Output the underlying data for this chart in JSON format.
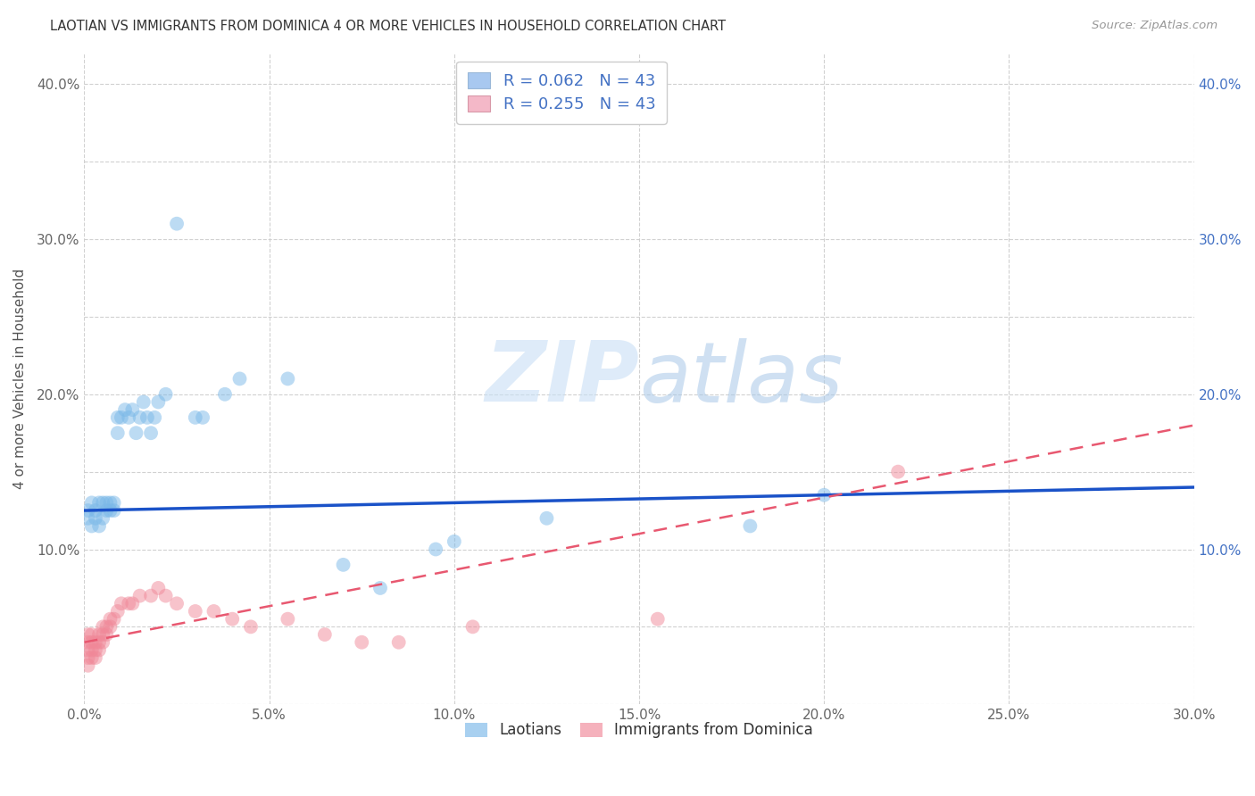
{
  "title": "LAOTIAN VS IMMIGRANTS FROM DOMINICA 4 OR MORE VEHICLES IN HOUSEHOLD CORRELATION CHART",
  "source": "Source: ZipAtlas.com",
  "ylabel": "4 or more Vehicles in Household",
  "xlabel": "",
  "xlim": [
    0.0,
    0.3
  ],
  "ylim": [
    0.0,
    0.42
  ],
  "xtick_labels": [
    "0.0%",
    "",
    "5.0%",
    "",
    "10.0%",
    "",
    "15.0%",
    "",
    "20.0%",
    "",
    "25.0%",
    "",
    "30.0%"
  ],
  "xtick_vals": [
    0.0,
    0.025,
    0.05,
    0.075,
    0.1,
    0.125,
    0.15,
    0.175,
    0.2,
    0.225,
    0.25,
    0.275,
    0.3
  ],
  "xtick_major_vals": [
    0.0,
    0.05,
    0.1,
    0.15,
    0.2,
    0.25,
    0.3
  ],
  "xtick_major_labels": [
    "0.0%",
    "5.0%",
    "10.0%",
    "15.0%",
    "20.0%",
    "25.0%",
    "30.0%"
  ],
  "ytick_vals": [
    0.0,
    0.05,
    0.1,
    0.15,
    0.2,
    0.25,
    0.3,
    0.35,
    0.4
  ],
  "ytick_labels_left": [
    "",
    "",
    "10.0%",
    "",
    "20.0%",
    "",
    "30.0%",
    "",
    "40.0%"
  ],
  "ytick_labels_right": [
    "",
    "",
    "10.0%",
    "",
    "20.0%",
    "",
    "30.0%",
    "",
    "40.0%"
  ],
  "legend_1_label": "R = 0.062   N = 43",
  "legend_2_label": "R = 0.255   N = 43",
  "legend_color_1": "#a8c8f0",
  "legend_color_2": "#f4b8c8",
  "scatter_color_1": "#7ab8e8",
  "scatter_color_2": "#f08898",
  "trendline_color_1": "#1a52c8",
  "trendline_color_2": "#e85870",
  "watermark_zip": "ZIP",
  "watermark_atlas": "atlas",
  "bottom_legend_1": "Laotians",
  "bottom_legend_2": "Immigrants from Dominica",
  "laotians_x": [
    0.001,
    0.001,
    0.002,
    0.002,
    0.003,
    0.003,
    0.004,
    0.004,
    0.005,
    0.005,
    0.006,
    0.006,
    0.007,
    0.007,
    0.008,
    0.008,
    0.009,
    0.009,
    0.01,
    0.011,
    0.012,
    0.013,
    0.014,
    0.015,
    0.016,
    0.017,
    0.018,
    0.019,
    0.02,
    0.022,
    0.025,
    0.03,
    0.032,
    0.038,
    0.042,
    0.055,
    0.07,
    0.08,
    0.095,
    0.1,
    0.125,
    0.18,
    0.2
  ],
  "laotians_y": [
    0.12,
    0.125,
    0.115,
    0.13,
    0.12,
    0.125,
    0.13,
    0.115,
    0.13,
    0.12,
    0.125,
    0.13,
    0.125,
    0.13,
    0.13,
    0.125,
    0.175,
    0.185,
    0.185,
    0.19,
    0.185,
    0.19,
    0.175,
    0.185,
    0.195,
    0.185,
    0.175,
    0.185,
    0.195,
    0.2,
    0.31,
    0.185,
    0.185,
    0.2,
    0.21,
    0.21,
    0.09,
    0.075,
    0.1,
    0.105,
    0.12,
    0.115,
    0.135
  ],
  "dominica_x": [
    0.001,
    0.001,
    0.001,
    0.001,
    0.001,
    0.002,
    0.002,
    0.002,
    0.002,
    0.003,
    0.003,
    0.003,
    0.004,
    0.004,
    0.004,
    0.005,
    0.005,
    0.005,
    0.006,
    0.006,
    0.007,
    0.007,
    0.008,
    0.009,
    0.01,
    0.012,
    0.013,
    0.015,
    0.018,
    0.02,
    0.022,
    0.025,
    0.03,
    0.035,
    0.04,
    0.045,
    0.055,
    0.065,
    0.075,
    0.085,
    0.105,
    0.155,
    0.22
  ],
  "dominica_y": [
    0.025,
    0.03,
    0.035,
    0.04,
    0.045,
    0.03,
    0.035,
    0.04,
    0.045,
    0.03,
    0.035,
    0.04,
    0.035,
    0.04,
    0.045,
    0.04,
    0.045,
    0.05,
    0.045,
    0.05,
    0.05,
    0.055,
    0.055,
    0.06,
    0.065,
    0.065,
    0.065,
    0.07,
    0.07,
    0.075,
    0.07,
    0.065,
    0.06,
    0.06,
    0.055,
    0.05,
    0.055,
    0.045,
    0.04,
    0.04,
    0.05,
    0.055,
    0.15
  ]
}
